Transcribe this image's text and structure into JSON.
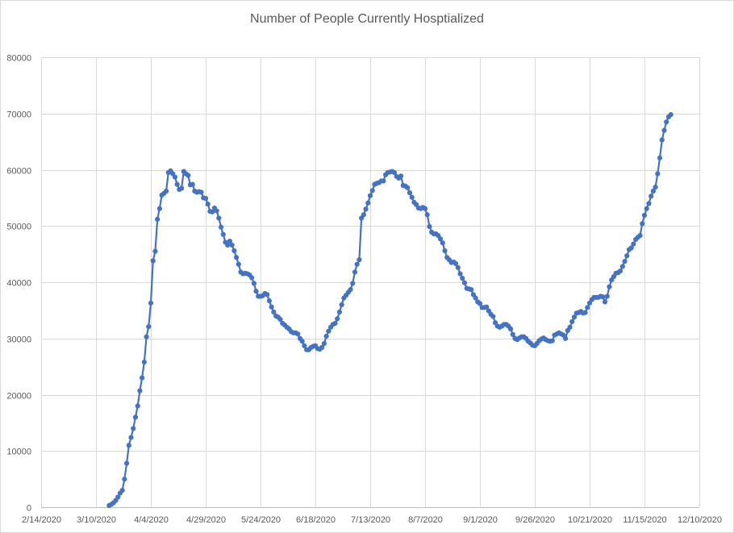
{
  "chart_data": {
    "type": "line",
    "title": "Number of People Currently Hosptialized",
    "xlabel": "",
    "ylabel": "",
    "x_range": [
      "2020-02-14",
      "2020-12-10"
    ],
    "ylim": [
      0,
      80000
    ],
    "x_ticks": [
      "2/14/2020",
      "3/10/2020",
      "4/4/2020",
      "4/29/2020",
      "5/24/2020",
      "6/18/2020",
      "7/13/2020",
      "8/7/2020",
      "9/1/2020",
      "9/26/2020",
      "10/21/2020",
      "11/15/2020",
      "12/10/2020"
    ],
    "y_ticks": [
      "0",
      "10000",
      "20000",
      "30000",
      "40000",
      "50000",
      "60000",
      "70000",
      "80000"
    ],
    "grid": true,
    "legend": "none",
    "color": "#4472c4",
    "markers": true,
    "series": [
      {
        "x_start": "2020-03-16",
        "x_step_days": 1,
        "values": [
          300,
          500,
          800,
          1200,
          1800,
          2500,
          3000,
          5000,
          7800,
          11000,
          12400,
          14000,
          16000,
          18000,
          20700,
          23000,
          25800,
          30300,
          32100,
          36300,
          43800,
          45500,
          51200,
          53100,
          55500,
          55800,
          56200,
          59500,
          59800,
          59300,
          58700,
          57400,
          56500,
          56700,
          59700,
          59300,
          59000,
          57300,
          57400,
          56200,
          56000,
          56100,
          56000,
          55000,
          54900,
          53900,
          52600,
          52500,
          53200,
          52700,
          51400,
          49800,
          48500,
          47100,
          46600,
          47300,
          46600,
          45600,
          44400,
          43200,
          41800,
          41500,
          41600,
          41500,
          41300,
          40800,
          39800,
          38400,
          37500,
          37500,
          37600,
          38000,
          37800,
          36700,
          35600,
          34700,
          34000,
          33800,
          33400,
          32700,
          32400,
          32000,
          31700,
          31200,
          31000,
          31000,
          30800,
          30000,
          29500,
          28700,
          28000,
          28000,
          28400,
          28600,
          28700,
          28200,
          28100,
          28400,
          29100,
          30400,
          31300,
          32000,
          32500,
          32700,
          33500,
          34700,
          36000,
          37200,
          37700,
          38200,
          38700,
          39800,
          41800,
          43200,
          44000,
          51400,
          52000,
          53000,
          54100,
          55400,
          56300,
          57400,
          57600,
          57700,
          58000,
          58000,
          59100,
          59500,
          59600,
          59700,
          59500,
          58800,
          58500,
          58900,
          57200,
          57100,
          56800,
          55900,
          55100,
          54200,
          53800,
          53200,
          53100,
          53300,
          53100,
          52000,
          49900,
          48900,
          48600,
          48600,
          48300,
          47700,
          47000,
          45600,
          44400,
          44000,
          43500,
          43600,
          43300,
          42600,
          41500,
          40700,
          39900,
          38900,
          38800,
          38700,
          37800,
          37200,
          36500,
          36200,
          35500,
          35500,
          35600,
          34900,
          34300,
          33900,
          32800,
          32200,
          32000,
          32200,
          32500,
          32500,
          32200,
          31700,
          30700,
          30000,
          29800,
          30100,
          30300,
          30300,
          30000,
          29500,
          29200,
          28800,
          28700,
          29100,
          29600,
          29900,
          30100,
          29800,
          29600,
          29500,
          29600,
          30600,
          30800,
          31000,
          30800,
          30600,
          30000,
          31400,
          32000,
          33000,
          33800,
          34500,
          34600,
          34800,
          34500,
          34600,
          35500,
          36300,
          36900,
          37300,
          37300,
          37300,
          37500,
          37400,
          36500,
          37500,
          39200,
          40400,
          41000,
          41600,
          41700,
          42000,
          42800,
          43700,
          44700,
          45800,
          46100,
          46800,
          47600,
          48000,
          48300,
          50400,
          51900,
          53100,
          54000,
          55300,
          56200,
          56900,
          59300,
          62100,
          65300,
          67000,
          68500,
          69400,
          69800
        ]
      }
    ]
  }
}
